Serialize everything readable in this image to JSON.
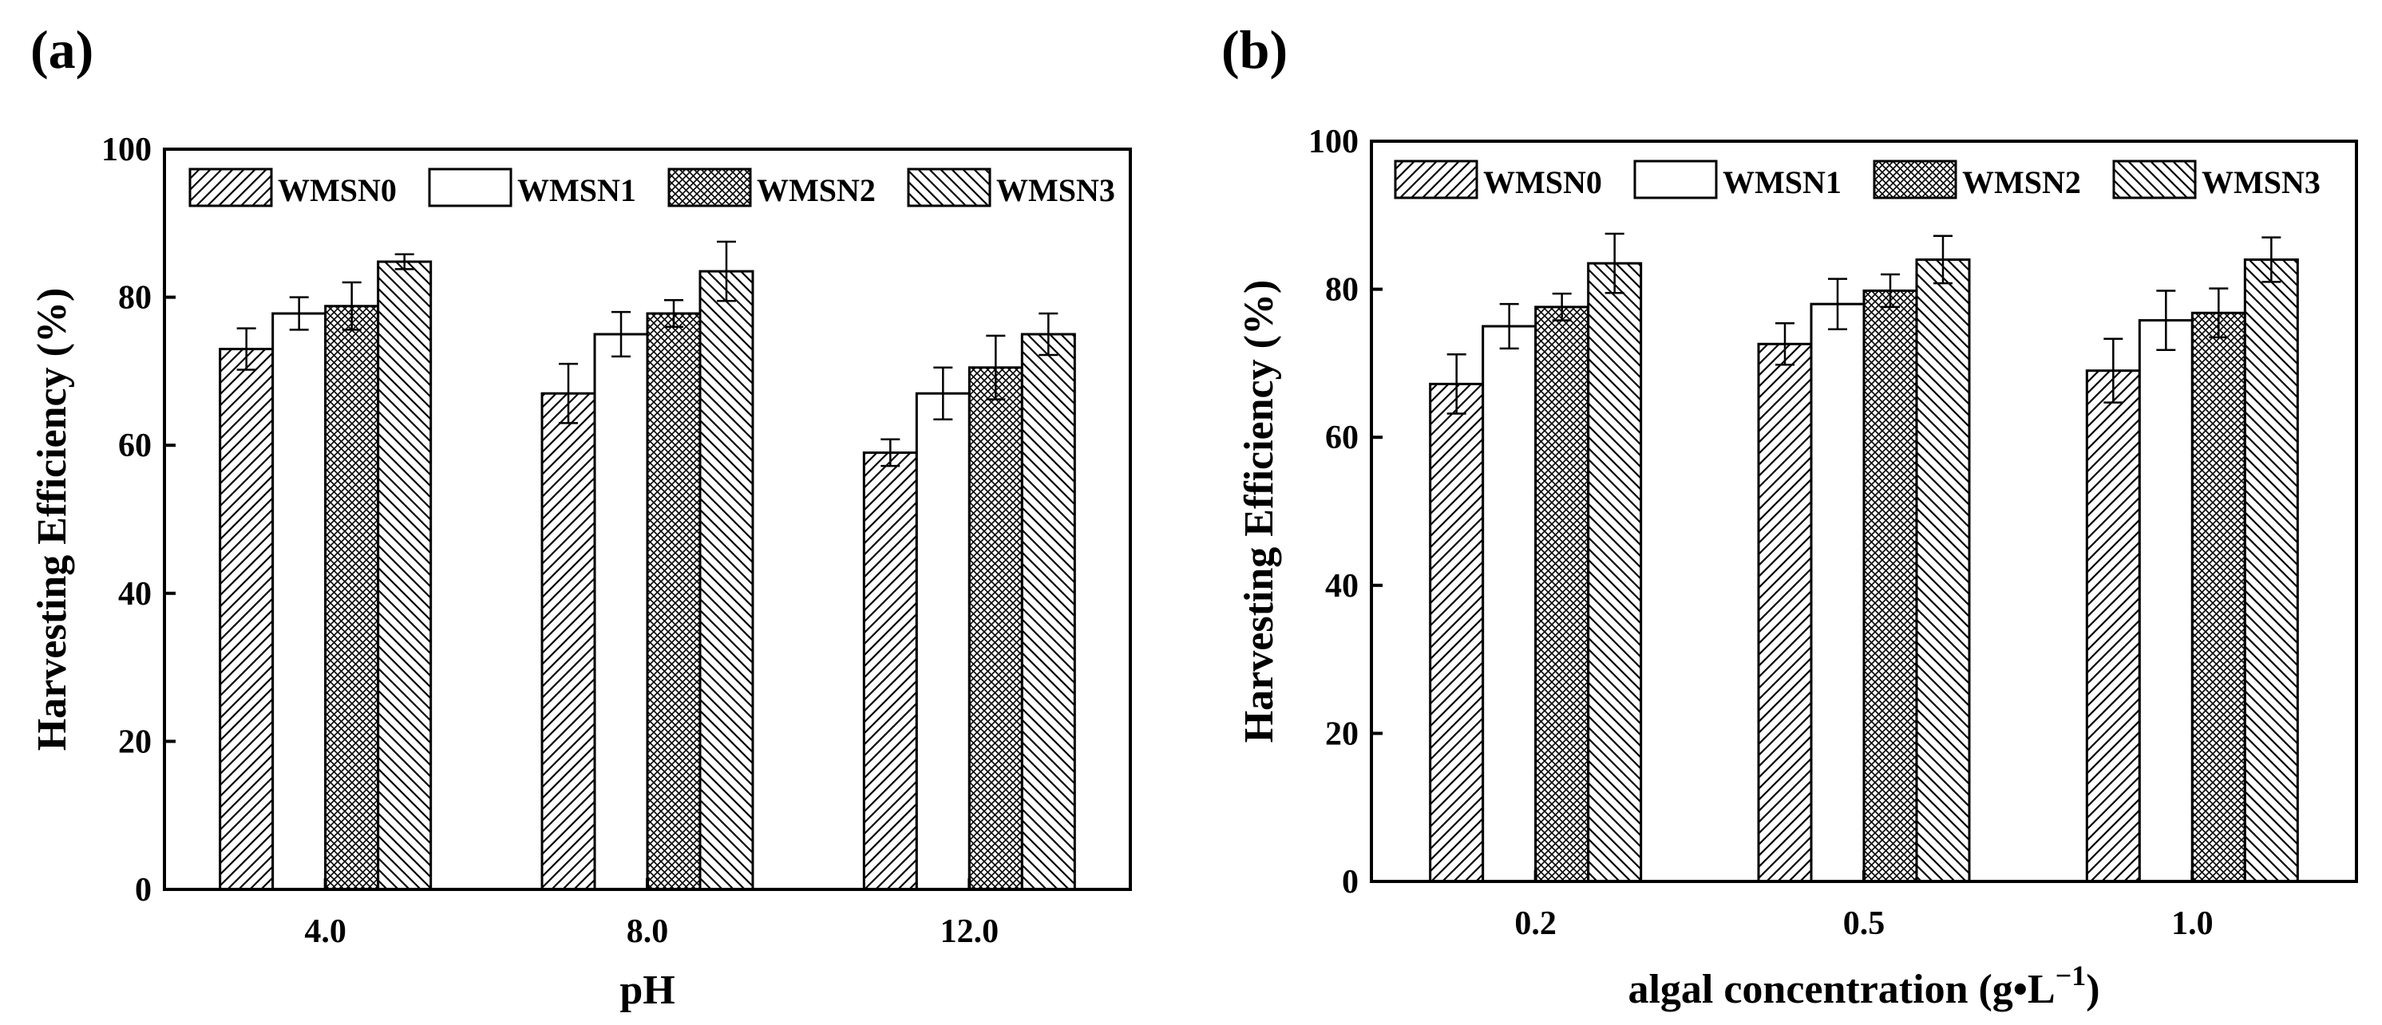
{
  "figure": {
    "panel_a_label": "(a)",
    "panel_b_label": "(b)"
  },
  "colors": {
    "ink": "#000000",
    "background": "#ffffff"
  },
  "chart_data": [
    {
      "type": "bar",
      "panel": "(a)",
      "xlabel": "pH",
      "ylabel": "Harvesting Efficiency (%)",
      "ylim": [
        0,
        100
      ],
      "yticks": [
        0,
        20,
        40,
        60,
        80,
        100
      ],
      "ytick_labels": [
        "0",
        "20",
        "40",
        "60",
        "80",
        "100"
      ],
      "categories": [
        "4.0",
        "8.0",
        "12.0"
      ],
      "legend_position": "top",
      "series": [
        {
          "name": "WMSN0",
          "pattern": "diag-right",
          "values": [
            73.0,
            67.0,
            59.0
          ],
          "errors": [
            2.8,
            4.0,
            1.8
          ]
        },
        {
          "name": "WMSN1",
          "pattern": "none",
          "values": [
            77.8,
            75.0,
            67.0
          ],
          "errors": [
            2.2,
            3.0,
            3.5
          ]
        },
        {
          "name": "WMSN2",
          "pattern": "crosshatch",
          "values": [
            78.8,
            77.8,
            70.5
          ],
          "errors": [
            3.2,
            1.8,
            4.3
          ]
        },
        {
          "name": "WMSN3",
          "pattern": "diag-left",
          "values": [
            84.8,
            83.5,
            75.0
          ],
          "errors": [
            1.0,
            4.0,
            2.8
          ]
        }
      ]
    },
    {
      "type": "bar",
      "panel": "(b)",
      "xlabel": "algal concentration (g•L",
      "xlabel_sup": "−1",
      "xlabel_close": ")",
      "ylabel": "Harvesting Efficiency (%)",
      "ylim": [
        0,
        100
      ],
      "yticks": [
        0,
        20,
        40,
        60,
        80,
        100
      ],
      "ytick_labels": [
        "0",
        "20",
        "40",
        "60",
        "80",
        "100"
      ],
      "categories": [
        "0.2",
        "0.5",
        "1.0"
      ],
      "legend_position": "top",
      "series": [
        {
          "name": "WMSN0",
          "pattern": "diag-right",
          "values": [
            67.2,
            72.6,
            69.0
          ],
          "errors": [
            4.0,
            2.8,
            4.3
          ]
        },
        {
          "name": "WMSN1",
          "pattern": "none",
          "values": [
            75.0,
            78.0,
            75.8
          ],
          "errors": [
            3.0,
            3.4,
            4.0
          ]
        },
        {
          "name": "WMSN2",
          "pattern": "crosshatch",
          "values": [
            77.6,
            79.8,
            76.8
          ],
          "errors": [
            1.8,
            2.2,
            3.3
          ]
        },
        {
          "name": "WMSN3",
          "pattern": "diag-left",
          "values": [
            83.5,
            84.0,
            84.0
          ],
          "errors": [
            4.0,
            3.2,
            3.0
          ]
        }
      ]
    }
  ]
}
